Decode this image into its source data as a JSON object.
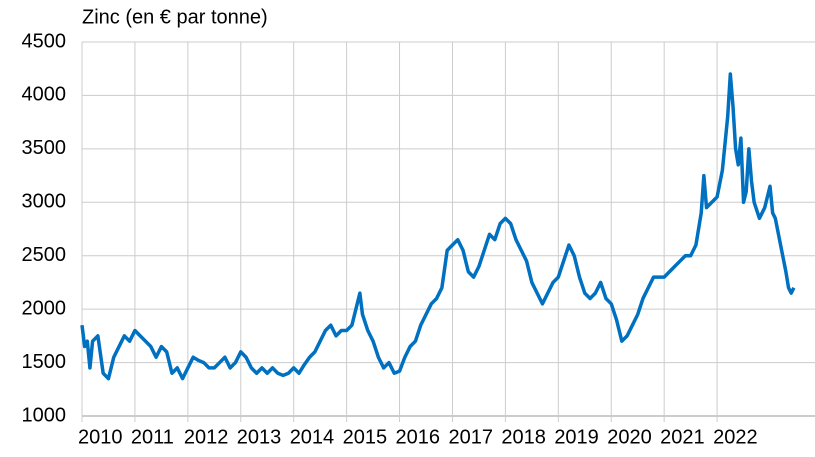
{
  "chart_data": {
    "type": "line",
    "title": "Zinc (en € par tonne)",
    "xlim": [
      2010,
      2023.85
    ],
    "xticks": [
      2010,
      2011,
      2012,
      2013,
      2014,
      2015,
      2016,
      2017,
      2018,
      2019,
      2020,
      2021,
      2022
    ],
    "ylim": [
      1000,
      4500
    ],
    "yticks": [
      1000,
      1500,
      2000,
      2500,
      3000,
      3500,
      4000,
      4500
    ],
    "grid": true,
    "series": [
      {
        "color": "#0070c0",
        "x": [
          2010.0,
          2010.05,
          2010.1,
          2010.15,
          2010.2,
          2010.3,
          2010.4,
          2010.5,
          2010.6,
          2010.7,
          2010.8,
          2010.9,
          2011.0,
          2011.1,
          2011.2,
          2011.3,
          2011.4,
          2011.5,
          2011.6,
          2011.7,
          2011.8,
          2011.9,
          2012.0,
          2012.1,
          2012.2,
          2012.3,
          2012.4,
          2012.5,
          2012.6,
          2012.7,
          2012.8,
          2012.9,
          2013.0,
          2013.1,
          2013.2,
          2013.3,
          2013.4,
          2013.5,
          2013.6,
          2013.7,
          2013.8,
          2013.9,
          2014.0,
          2014.1,
          2014.2,
          2014.3,
          2014.4,
          2014.5,
          2014.6,
          2014.7,
          2014.8,
          2014.9,
          2015.0,
          2015.1,
          2015.2,
          2015.25,
          2015.3,
          2015.4,
          2015.5,
          2015.6,
          2015.7,
          2015.8,
          2015.9,
          2016.0,
          2016.1,
          2016.2,
          2016.3,
          2016.4,
          2016.5,
          2016.6,
          2016.7,
          2016.8,
          2016.9,
          2017.0,
          2017.1,
          2017.2,
          2017.3,
          2017.4,
          2017.5,
          2017.6,
          2017.7,
          2017.8,
          2017.9,
          2018.0,
          2018.1,
          2018.2,
          2018.3,
          2018.4,
          2018.5,
          2018.6,
          2018.7,
          2018.8,
          2018.9,
          2019.0,
          2019.1,
          2019.2,
          2019.3,
          2019.4,
          2019.5,
          2019.6,
          2019.7,
          2019.8,
          2019.9,
          2020.0,
          2020.1,
          2020.2,
          2020.3,
          2020.4,
          2020.5,
          2020.6,
          2020.7,
          2020.8,
          2020.9,
          2021.0,
          2021.1,
          2021.2,
          2021.3,
          2021.4,
          2021.5,
          2021.6,
          2021.7,
          2021.75,
          2021.8,
          2021.9,
          2022.0,
          2022.1,
          2022.2,
          2022.25,
          2022.3,
          2022.35,
          2022.4,
          2022.45,
          2022.5,
          2022.55,
          2022.6,
          2022.65,
          2022.7,
          2022.8,
          2022.9,
          2023.0,
          2023.05,
          2023.1,
          2023.2,
          2023.3,
          2023.35,
          2023.4,
          2023.45
        ],
        "values": [
          1850,
          1650,
          1700,
          1450,
          1700,
          1750,
          1400,
          1350,
          1550,
          1650,
          1750,
          1700,
          1800,
          1750,
          1700,
          1650,
          1550,
          1650,
          1600,
          1400,
          1450,
          1350,
          1450,
          1550,
          1520,
          1500,
          1450,
          1450,
          1500,
          1550,
          1450,
          1500,
          1600,
          1550,
          1450,
          1400,
          1450,
          1400,
          1450,
          1400,
          1380,
          1400,
          1450,
          1400,
          1480,
          1550,
          1600,
          1700,
          1800,
          1850,
          1750,
          1800,
          1800,
          1850,
          2050,
          2150,
          1950,
          1800,
          1700,
          1550,
          1450,
          1500,
          1400,
          1420,
          1550,
          1650,
          1700,
          1850,
          1950,
          2050,
          2100,
          2200,
          2550,
          2600,
          2650,
          2550,
          2350,
          2300,
          2400,
          2550,
          2700,
          2650,
          2800,
          2850,
          2800,
          2650,
          2550,
          2450,
          2250,
          2150,
          2050,
          2150,
          2250,
          2300,
          2450,
          2600,
          2500,
          2300,
          2150,
          2100,
          2150,
          2250,
          2100,
          2050,
          1900,
          1700,
          1750,
          1850,
          1950,
          2100,
          2200,
          2300,
          2300,
          2300,
          2350,
          2400,
          2450,
          2500,
          2500,
          2600,
          2900,
          3250,
          2950,
          3000,
          3050,
          3300,
          3800,
          4200,
          3900,
          3500,
          3350,
          3600,
          3000,
          3100,
          3500,
          3200,
          3000,
          2850,
          2950,
          3150,
          2900,
          2850,
          2600,
          2350,
          2200,
          2150,
          2200
        ]
      }
    ]
  }
}
